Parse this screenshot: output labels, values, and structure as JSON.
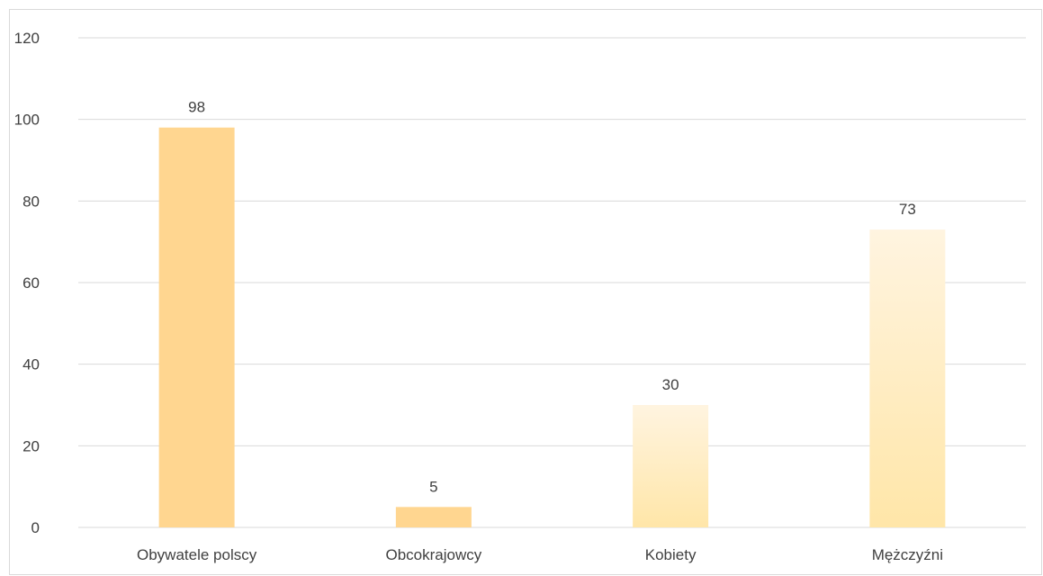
{
  "chart_data": {
    "type": "bar",
    "title": "",
    "xlabel": "",
    "ylabel": "",
    "categories": [
      "Obywatele polscy",
      "Obcokrajowcy",
      "Kobiety",
      "Mężczyźni"
    ],
    "values": [
      98,
      5,
      30,
      73
    ],
    "data_labels": [
      "98",
      "5",
      "30",
      "73"
    ],
    "y_ticks": [
      "0",
      "20",
      "40",
      "60",
      "80",
      "100",
      "120"
    ],
    "ylim": [
      0,
      120
    ],
    "grid": true,
    "legend": "none",
    "colors": {
      "bars": [
        {
          "top": "#ffd690",
          "bottom": "#ffd690"
        },
        {
          "top": "#ffd690",
          "bottom": "#ffd690"
        },
        {
          "top": "#fff4e0",
          "bottom": "#ffe6a8"
        },
        {
          "top": "#fff4e0",
          "bottom": "#ffe6a8"
        }
      ],
      "grid": "#d9d9d9",
      "text": "#404040"
    }
  }
}
